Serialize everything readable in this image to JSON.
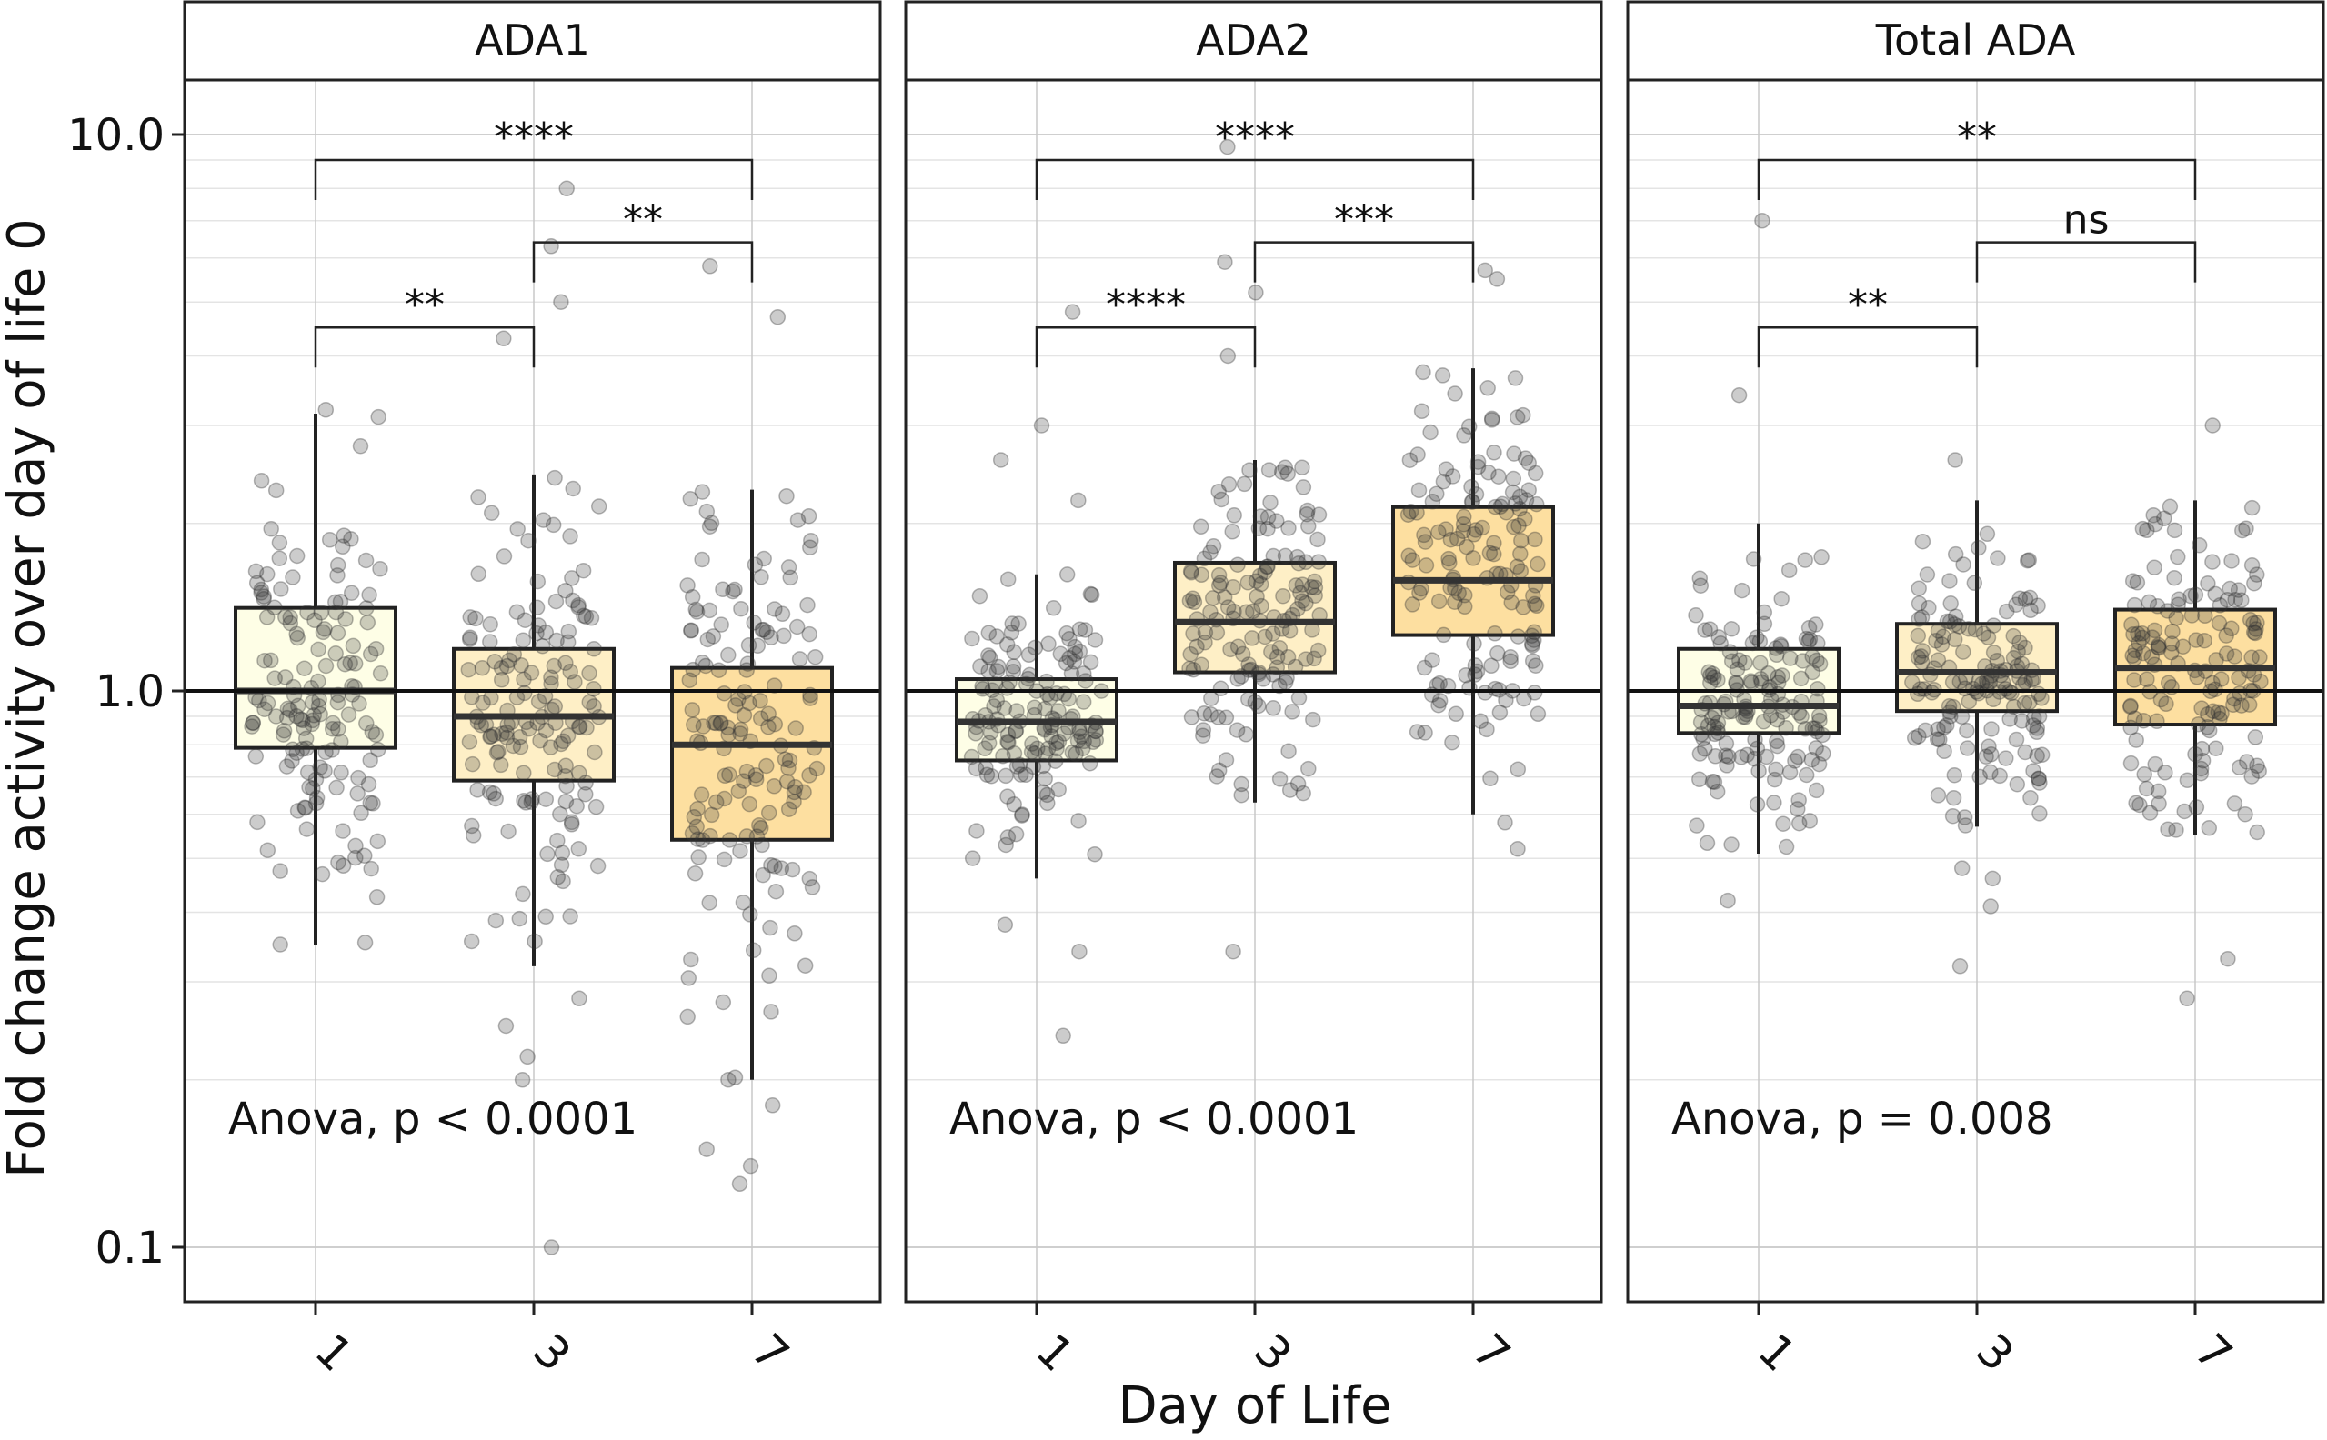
{
  "chart_data": {
    "type": "boxplot",
    "xlabel": "Day of Life",
    "ylabel": "Fold change activity over day of life 0",
    "y_scale": "log10",
    "ylim": [
      0.08,
      14
    ],
    "y_ticks": [
      0.1,
      1.0,
      10.0
    ],
    "y_tick_labels": [
      "0.1",
      "1.0",
      "10.0"
    ],
    "categories": [
      "1",
      "3",
      "7"
    ],
    "reference_line": 1.0,
    "colors": {
      "box_fills": [
        "#FEFEE6",
        "#FEEFC6",
        "#FDDFA0"
      ],
      "box_stroke": "#222222",
      "point_fill": "#333333",
      "strip_fill": "#ffffff",
      "grid_major": "#c8c8c8",
      "grid_minor": "#e4e4e4"
    },
    "panels": [
      {
        "title": "ADA1",
        "annotation": "Anova, p < 0.0001",
        "boxes": [
          {
            "day": "1",
            "q1": 0.79,
            "median": 1.0,
            "q3": 1.41,
            "low": 0.35,
            "high": 3.15
          },
          {
            "day": "3",
            "q1": 0.69,
            "median": 0.9,
            "q3": 1.19,
            "low": 0.32,
            "high": 2.45
          },
          {
            "day": "7",
            "q1": 0.54,
            "median": 0.8,
            "q3": 1.1,
            "low": 0.2,
            "high": 2.3
          }
        ],
        "brackets": [
          {
            "from": "1",
            "to": "7",
            "label": "****",
            "y": 9.0
          },
          {
            "from": "3",
            "to": "7",
            "label": "**",
            "y": 6.4
          },
          {
            "from": "1",
            "to": "3",
            "label": "**",
            "y": 4.5
          }
        ],
        "outliers": [
          {
            "day": "1",
            "values": [
              0.35,
              3.2
            ]
          },
          {
            "day": "3",
            "values": [
              0.1,
              0.2,
              0.22,
              0.25,
              0.28,
              4.3,
              5.0,
              6.3,
              8.0
            ]
          },
          {
            "day": "7",
            "values": [
              0.13,
              0.14,
              0.15,
              0.18,
              0.2,
              4.7,
              5.8
            ]
          }
        ]
      },
      {
        "title": "ADA2",
        "annotation": "Anova, p < 0.0001",
        "boxes": [
          {
            "day": "1",
            "q1": 0.75,
            "median": 0.88,
            "q3": 1.05,
            "low": 0.46,
            "high": 1.62
          },
          {
            "day": "3",
            "q1": 1.08,
            "median": 1.33,
            "q3": 1.7,
            "low": 0.63,
            "high": 2.6
          },
          {
            "day": "7",
            "q1": 1.26,
            "median": 1.58,
            "q3": 2.14,
            "low": 0.6,
            "high": 3.8
          }
        ],
        "brackets": [
          {
            "from": "1",
            "to": "7",
            "label": "****",
            "y": 9.0
          },
          {
            "from": "3",
            "to": "7",
            "label": "***",
            "y": 6.4
          },
          {
            "from": "1",
            "to": "3",
            "label": "****",
            "y": 4.5
          }
        ],
        "outliers": [
          {
            "day": "1",
            "values": [
              0.24,
              0.34,
              0.38,
              2.2,
              2.6,
              3.0,
              4.8
            ]
          },
          {
            "day": "3",
            "values": [
              0.34,
              4.0,
              5.2,
              5.9,
              9.5
            ]
          },
          {
            "day": "7",
            "values": [
              0.52,
              0.58,
              5.5,
              5.7
            ]
          }
        ]
      },
      {
        "title": "Total ADA",
        "annotation": "Anova, p = 0.008",
        "boxes": [
          {
            "day": "1",
            "q1": 0.84,
            "median": 0.94,
            "q3": 1.19,
            "low": 0.51,
            "high": 2.0
          },
          {
            "day": "3",
            "q1": 0.92,
            "median": 1.08,
            "q3": 1.32,
            "low": 0.57,
            "high": 2.2
          },
          {
            "day": "7",
            "q1": 0.87,
            "median": 1.1,
            "q3": 1.4,
            "low": 0.55,
            "high": 2.2
          }
        ],
        "brackets": [
          {
            "from": "1",
            "to": "7",
            "label": "**",
            "y": 9.0
          },
          {
            "from": "3",
            "to": "7",
            "label": "ns",
            "y": 6.4
          },
          {
            "from": "1",
            "to": "3",
            "label": "**",
            "y": 4.5
          }
        ],
        "outliers": [
          {
            "day": "1",
            "values": [
              0.42,
              3.4,
              7.0
            ]
          },
          {
            "day": "3",
            "values": [
              0.32,
              0.41,
              0.46,
              0.48,
              2.6
            ]
          },
          {
            "day": "7",
            "values": [
              0.28,
              0.33,
              3.0
            ]
          }
        ]
      }
    ]
  }
}
